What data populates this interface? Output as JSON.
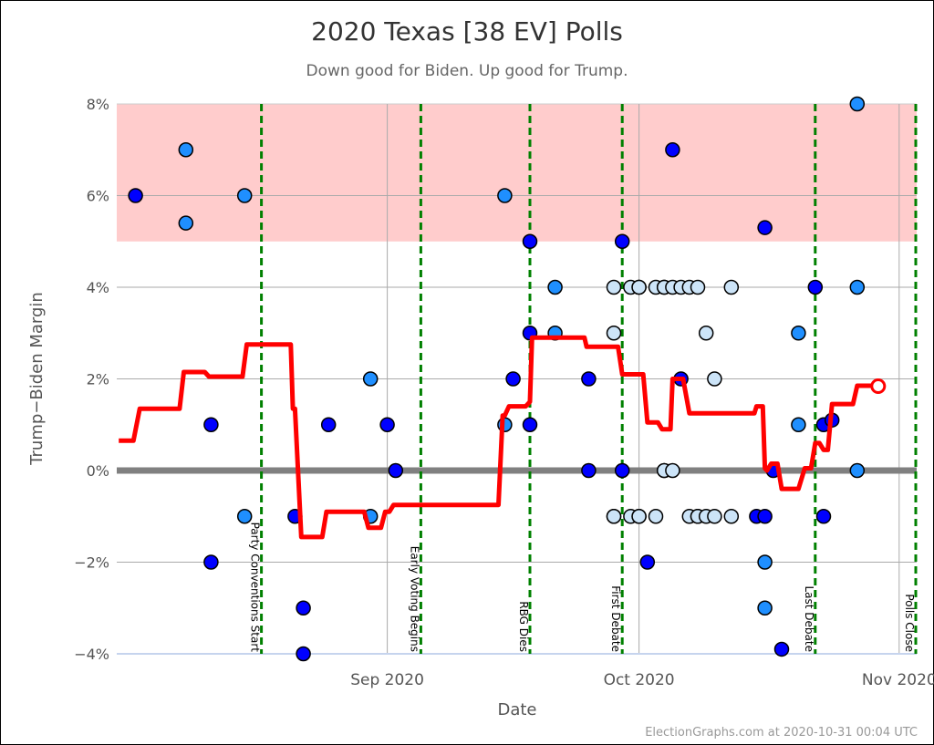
{
  "chart_data": {
    "type": "scatter",
    "title": "2020 Texas [38 EV] Polls",
    "subtitle": "Down good for Biden. Up good for Trump.",
    "xlabel": "Date",
    "ylabel": "Trump−Biden Margin",
    "footer": "ElectionGraphs.com at 2020-10-31 00:04 UTC",
    "xlim": [
      "2020-07-31",
      "2020-11-03"
    ],
    "ylim": [
      -4,
      8
    ],
    "y_ticks": [
      {
        "value": 8,
        "label": "8%"
      },
      {
        "value": 6,
        "label": "6%"
      },
      {
        "value": 4,
        "label": "4%"
      },
      {
        "value": 2,
        "label": "2%"
      },
      {
        "value": 0,
        "label": "0%"
      },
      {
        "value": -2,
        "label": "−2%"
      },
      {
        "value": -4,
        "label": "−4%"
      }
    ],
    "x_ticks": [
      {
        "date": "2020-09-01",
        "label": "Sep 2020"
      },
      {
        "date": "2020-10-01",
        "label": "Oct 2020"
      },
      {
        "date": "2020-11-01",
        "label": "Nov 2020"
      }
    ],
    "grid": true,
    "shaded_band": {
      "from": 5,
      "to": 8,
      "color": "#ffcccc"
    },
    "zero_line_color": "#808080",
    "colors": {
      "dark": "#0000ff",
      "medium": "#1f8fff",
      "light": "#cce4f8",
      "average": "#ff0000",
      "event": "#008000"
    },
    "events": [
      {
        "date": "2020-08-17",
        "label": "Party Conventions Start"
      },
      {
        "date": "2020-09-05",
        "label": "Early Voting Begins"
      },
      {
        "date": "2020-09-18",
        "label": "RBG Dies"
      },
      {
        "date": "2020-09-29",
        "label": "First Debate"
      },
      {
        "date": "2020-10-22",
        "label": "Last Debate"
      },
      {
        "date": "2020-11-03",
        "label": "Polls Close"
      }
    ],
    "polls": [
      {
        "date": "2020-08-02",
        "margin": 6,
        "shade": "dark"
      },
      {
        "date": "2020-08-08",
        "margin": 7,
        "shade": "medium"
      },
      {
        "date": "2020-08-08",
        "margin": 5.4,
        "shade": "medium"
      },
      {
        "date": "2020-08-11",
        "margin": 1,
        "shade": "dark"
      },
      {
        "date": "2020-08-11",
        "margin": -2,
        "shade": "dark"
      },
      {
        "date": "2020-08-15",
        "margin": 6,
        "shade": "medium"
      },
      {
        "date": "2020-08-15",
        "margin": -1,
        "shade": "medium"
      },
      {
        "date": "2020-08-21",
        "margin": -1,
        "shade": "dark"
      },
      {
        "date": "2020-08-22",
        "margin": -3,
        "shade": "dark"
      },
      {
        "date": "2020-08-22",
        "margin": -4,
        "shade": "dark"
      },
      {
        "date": "2020-08-25",
        "margin": 1,
        "shade": "dark"
      },
      {
        "date": "2020-08-30",
        "margin": 2,
        "shade": "medium"
      },
      {
        "date": "2020-08-30",
        "margin": -1,
        "shade": "medium"
      },
      {
        "date": "2020-09-01",
        "margin": 1,
        "shade": "dark"
      },
      {
        "date": "2020-09-02",
        "margin": 0,
        "shade": "dark"
      },
      {
        "date": "2020-09-15",
        "margin": 6,
        "shade": "medium"
      },
      {
        "date": "2020-09-15",
        "margin": 1,
        "shade": "medium"
      },
      {
        "date": "2020-09-16",
        "margin": 2,
        "shade": "dark"
      },
      {
        "date": "2020-09-18",
        "margin": 1,
        "shade": "dark"
      },
      {
        "date": "2020-09-18",
        "margin": 3,
        "shade": "dark"
      },
      {
        "date": "2020-09-18",
        "margin": 5,
        "shade": "dark"
      },
      {
        "date": "2020-09-21",
        "margin": 4,
        "shade": "medium"
      },
      {
        "date": "2020-09-21",
        "margin": 3,
        "shade": "medium"
      },
      {
        "date": "2020-09-25",
        "margin": 2,
        "shade": "dark"
      },
      {
        "date": "2020-09-25",
        "margin": 0,
        "shade": "dark"
      },
      {
        "date": "2020-09-28",
        "margin": 3,
        "shade": "light"
      },
      {
        "date": "2020-09-28",
        "margin": 4,
        "shade": "light"
      },
      {
        "date": "2020-09-30",
        "margin": 4,
        "shade": "light"
      },
      {
        "date": "2020-10-01",
        "margin": 4,
        "shade": "light"
      },
      {
        "date": "2020-10-01",
        "margin": 4,
        "shade": "light"
      },
      {
        "date": "2020-10-03",
        "margin": 4,
        "shade": "light"
      },
      {
        "date": "2020-10-04",
        "margin": 4,
        "shade": "light"
      },
      {
        "date": "2020-10-04",
        "margin": 4,
        "shade": "light"
      },
      {
        "date": "2020-10-05",
        "margin": 4,
        "shade": "light"
      },
      {
        "date": "2020-10-06",
        "margin": 4,
        "shade": "light"
      },
      {
        "date": "2020-10-07",
        "margin": 4,
        "shade": "light"
      },
      {
        "date": "2020-10-08",
        "margin": 4,
        "shade": "light"
      },
      {
        "date": "2020-10-12",
        "margin": 4,
        "shade": "light"
      },
      {
        "date": "2020-09-28",
        "margin": -1,
        "shade": "light"
      },
      {
        "date": "2020-09-28",
        "margin": -1,
        "shade": "light"
      },
      {
        "date": "2020-09-30",
        "margin": -1,
        "shade": "light"
      },
      {
        "date": "2020-10-01",
        "margin": -1,
        "shade": "light"
      },
      {
        "date": "2020-10-01",
        "margin": -1,
        "shade": "light"
      },
      {
        "date": "2020-10-03",
        "margin": -1,
        "shade": "light"
      },
      {
        "date": "2020-10-07",
        "margin": -1,
        "shade": "light"
      },
      {
        "date": "2020-10-08",
        "margin": -1,
        "shade": "light"
      },
      {
        "date": "2020-10-08",
        "margin": -1,
        "shade": "light"
      },
      {
        "date": "2020-10-09",
        "margin": -1,
        "shade": "light"
      },
      {
        "date": "2020-10-10",
        "margin": -1,
        "shade": "light"
      },
      {
        "date": "2020-10-12",
        "margin": -1,
        "shade": "light"
      },
      {
        "date": "2020-10-04",
        "margin": 0,
        "shade": "light"
      },
      {
        "date": "2020-10-04",
        "margin": 0,
        "shade": "light"
      },
      {
        "date": "2020-10-05",
        "margin": 0,
        "shade": "light"
      },
      {
        "date": "2020-10-09",
        "margin": 3,
        "shade": "light"
      },
      {
        "date": "2020-10-10",
        "margin": 2,
        "shade": "light"
      },
      {
        "date": "2020-09-29",
        "margin": 5,
        "shade": "dark"
      },
      {
        "date": "2020-09-29",
        "margin": 0,
        "shade": "dark"
      },
      {
        "date": "2020-10-02",
        "margin": -2,
        "shade": "dark"
      },
      {
        "date": "2020-10-05",
        "margin": 7,
        "shade": "dark"
      },
      {
        "date": "2020-10-06",
        "margin": 2,
        "shade": "dark"
      },
      {
        "date": "2020-10-15",
        "margin": -1,
        "shade": "dark"
      },
      {
        "date": "2020-10-16",
        "margin": -1,
        "shade": "dark"
      },
      {
        "date": "2020-10-16",
        "margin": -2,
        "shade": "medium"
      },
      {
        "date": "2020-10-16",
        "margin": -3,
        "shade": "medium"
      },
      {
        "date": "2020-10-16",
        "margin": 5.3,
        "shade": "dark"
      },
      {
        "date": "2020-10-17",
        "margin": 0,
        "shade": "dark"
      },
      {
        "date": "2020-10-18",
        "margin": -3.9,
        "shade": "dark"
      },
      {
        "date": "2020-10-20",
        "margin": 3,
        "shade": "medium"
      },
      {
        "date": "2020-10-20",
        "margin": 1,
        "shade": "medium"
      },
      {
        "date": "2020-10-22",
        "margin": 4,
        "shade": "dark"
      },
      {
        "date": "2020-10-23",
        "margin": 1,
        "shade": "dark"
      },
      {
        "date": "2020-10-23",
        "margin": -1,
        "shade": "dark"
      },
      {
        "date": "2020-10-24",
        "margin": 1.1,
        "shade": "dark"
      },
      {
        "date": "2020-10-27",
        "margin": 8,
        "shade": "medium"
      },
      {
        "date": "2020-10-27",
        "margin": 4,
        "shade": "medium"
      },
      {
        "date": "2020-10-27",
        "margin": 0,
        "shade": "medium"
      }
    ],
    "average": [
      [
        "2020-07-31T00:00",
        0.65
      ],
      [
        "2020-08-01T18:00",
        0.65
      ],
      [
        "2020-08-02T12:00",
        1.35
      ],
      [
        "2020-08-07T06:00",
        1.35
      ],
      [
        "2020-08-07T18:00",
        2.15
      ],
      [
        "2020-08-10T06:00",
        2.15
      ],
      [
        "2020-08-10T18:00",
        2.05
      ],
      [
        "2020-08-14T18:00",
        2.05
      ],
      [
        "2020-08-15T06:00",
        2.75
      ],
      [
        "2020-08-20T12:00",
        2.75
      ],
      [
        "2020-08-20T18:00",
        1.35
      ],
      [
        "2020-08-21T00:00",
        1.35
      ],
      [
        "2020-08-21T18:00",
        -1.45
      ],
      [
        "2020-08-24T06:00",
        -1.45
      ],
      [
        "2020-08-24T18:00",
        -0.9
      ],
      [
        "2020-08-29T06:00",
        -0.9
      ],
      [
        "2020-08-29T18:00",
        -1.25
      ],
      [
        "2020-08-31T06:00",
        -1.25
      ],
      [
        "2020-08-31T18:00",
        -0.9
      ],
      [
        "2020-09-01T06:00",
        -0.9
      ],
      [
        "2020-09-01T18:00",
        -0.75
      ],
      [
        "2020-09-14T06:00",
        -0.75
      ],
      [
        "2020-09-14T18:00",
        1.2
      ],
      [
        "2020-09-15T00:00",
        1.2
      ],
      [
        "2020-09-15T12:00",
        1.4
      ],
      [
        "2020-09-17T12:00",
        1.4
      ],
      [
        "2020-09-18T00:00",
        1.5
      ],
      [
        "2020-09-18T06:00",
        2.9
      ],
      [
        "2020-09-24T12:00",
        2.9
      ],
      [
        "2020-09-24T18:00",
        2.7
      ],
      [
        "2020-09-28T12:00",
        2.7
      ],
      [
        "2020-09-29T00:00",
        2.1
      ],
      [
        "2020-10-01T12:00",
        2.1
      ],
      [
        "2020-10-02T00:00",
        1.05
      ],
      [
        "2020-10-03T06:00",
        1.05
      ],
      [
        "2020-10-03T18:00",
        0.9
      ],
      [
        "2020-10-04T18:00",
        0.9
      ],
      [
        "2020-10-05T00:00",
        2.0
      ],
      [
        "2020-10-06T06:00",
        2.0
      ],
      [
        "2020-10-07T00:00",
        1.25
      ],
      [
        "2020-10-14T18:00",
        1.25
      ],
      [
        "2020-10-15T00:00",
        1.4
      ],
      [
        "2020-10-15T18:00",
        1.4
      ],
      [
        "2020-10-16T00:00",
        0.05
      ],
      [
        "2020-10-16T06:00",
        0.0
      ],
      [
        "2020-10-16T18:00",
        0.15
      ],
      [
        "2020-10-17T12:00",
        0.15
      ],
      [
        "2020-10-18T00:00",
        -0.4
      ],
      [
        "2020-10-20T00:00",
        -0.4
      ],
      [
        "2020-10-20T18:00",
        0.05
      ],
      [
        "2020-10-21T12:00",
        0.05
      ],
      [
        "2020-10-22T00:00",
        0.6
      ],
      [
        "2020-10-22T12:00",
        0.6
      ],
      [
        "2020-10-23T00:00",
        0.45
      ],
      [
        "2020-10-23T12:00",
        0.45
      ],
      [
        "2020-10-24T00:00",
        1.45
      ],
      [
        "2020-10-26T12:00",
        1.45
      ],
      [
        "2020-10-27T00:00",
        1.85
      ],
      [
        "2020-10-28T18:00",
        1.85
      ],
      [
        "2020-10-29T12:00",
        1.84
      ]
    ],
    "latest_average": {
      "date": "2020-10-29T12:00",
      "margin": 1.84
    }
  }
}
